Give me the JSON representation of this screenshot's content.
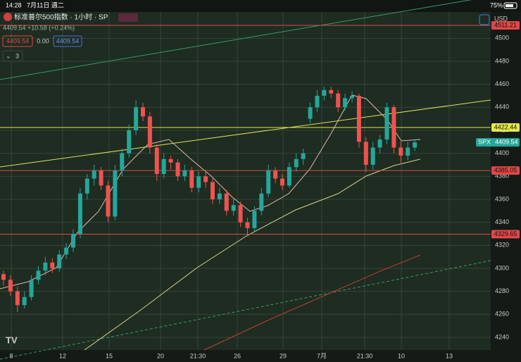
{
  "status": {
    "time": "14:28",
    "date": "7月11日 週二",
    "battery": "75%"
  },
  "header": {
    "symbol": "标准普尔500指数 · 1小时 · SP",
    "quote": "4409.54 +10.58 (+0.24%)",
    "buttons": [
      "4409.54",
      "0.00",
      "4409.54"
    ],
    "indicators": "3"
  },
  "chart_data": {
    "type": "candlestick",
    "currency": "USD",
    "ylim": [
      4230,
      4520
    ],
    "yticks": [
      4240,
      4260,
      4280,
      4300,
      4320,
      4340,
      4360,
      4380,
      4400,
      4420,
      4440,
      4460,
      4480,
      4500
    ],
    "categories": [
      "8",
      "12",
      "15",
      "20",
      "21:30",
      "26",
      "29",
      "7月",
      "21:30",
      "10",
      "13"
    ],
    "up_color": "#26a69a",
    "down_color": "#ef5350",
    "grid": true,
    "price_lines": [
      {
        "value": 4511.21,
        "color": "#e04848"
      },
      {
        "value": 4422.44,
        "color": "#e8e84a"
      },
      {
        "value": 4385.05,
        "color": "#e04848"
      },
      {
        "value": 4329.65,
        "color": "#e04848"
      }
    ],
    "last_price": {
      "name": "SPX",
      "value": 4409.54
    },
    "candles": [
      [
        4295,
        4298,
        4285,
        4290
      ],
      [
        4290,
        4294,
        4276,
        4280
      ],
      [
        4280,
        4284,
        4262,
        4268
      ],
      [
        4268,
        4280,
        4265,
        4275
      ],
      [
        4275,
        4294,
        4272,
        4290
      ],
      [
        4290,
        4302,
        4286,
        4298
      ],
      [
        4298,
        4310,
        4294,
        4305
      ],
      [
        4305,
        4309,
        4296,
        4300
      ],
      [
        4300,
        4316,
        4297,
        4312
      ],
      [
        4312,
        4322,
        4308,
        4318
      ],
      [
        4318,
        4334,
        4314,
        4330
      ],
      [
        4330,
        4370,
        4326,
        4365
      ],
      [
        4365,
        4382,
        4360,
        4378
      ],
      [
        4378,
        4390,
        4372,
        4385
      ],
      [
        4385,
        4388,
        4368,
        4372
      ],
      [
        4372,
        4376,
        4340,
        4345
      ],
      [
        4345,
        4390,
        4342,
        4385
      ],
      [
        4385,
        4404,
        4380,
        4400
      ],
      [
        4400,
        4425,
        4396,
        4420
      ],
      [
        4420,
        4446,
        4416,
        4440
      ],
      [
        4440,
        4444,
        4428,
        4432
      ],
      [
        4432,
        4436,
        4400,
        4405
      ],
      [
        4405,
        4408,
        4376,
        4382
      ],
      [
        4382,
        4400,
        4378,
        4395
      ],
      [
        4395,
        4398,
        4386,
        4392
      ],
      [
        4392,
        4395,
        4376,
        4380
      ],
      [
        4380,
        4390,
        4376,
        4385
      ],
      [
        4385,
        4388,
        4366,
        4370
      ],
      [
        4370,
        4384,
        4366,
        4380
      ],
      [
        4380,
        4384,
        4370,
        4375
      ],
      [
        4375,
        4378,
        4356,
        4360
      ],
      [
        4360,
        4370,
        4356,
        4365
      ],
      [
        4365,
        4368,
        4346,
        4350
      ],
      [
        4350,
        4360,
        4346,
        4355
      ],
      [
        4355,
        4358,
        4336,
        4340
      ],
      [
        4340,
        4344,
        4328,
        4335
      ],
      [
        4335,
        4354,
        4332,
        4350
      ],
      [
        4350,
        4370,
        4346,
        4365
      ],
      [
        4365,
        4390,
        4362,
        4385
      ],
      [
        4385,
        4388,
        4374,
        4378
      ],
      [
        4378,
        4382,
        4368,
        4372
      ],
      [
        4372,
        4392,
        4370,
        4388
      ],
      [
        4388,
        4400,
        4384,
        4395
      ],
      [
        4395,
        4404,
        4390,
        4400
      ],
      [
        4430,
        4444,
        4426,
        4440
      ],
      [
        4440,
        4455,
        4436,
        4450
      ],
      [
        4450,
        4458,
        4446,
        4455
      ],
      [
        4455,
        4458,
        4448,
        4452
      ],
      [
        4452,
        4455,
        4436,
        4440
      ],
      [
        4440,
        4452,
        4437,
        4448
      ],
      [
        4448,
        4454,
        4444,
        4450
      ],
      [
        4450,
        4452,
        4405,
        4410
      ],
      [
        4410,
        4414,
        4384,
        4390
      ],
      [
        4390,
        4410,
        4386,
        4405
      ],
      [
        4405,
        4416,
        4400,
        4412
      ],
      [
        4412,
        4444,
        4408,
        4440
      ],
      [
        4440,
        4442,
        4400,
        4405
      ],
      [
        4405,
        4410,
        4392,
        4398
      ],
      [
        4398,
        4410,
        4394,
        4405
      ],
      [
        4405,
        4412,
        4402,
        4409.54
      ]
    ]
  }
}
